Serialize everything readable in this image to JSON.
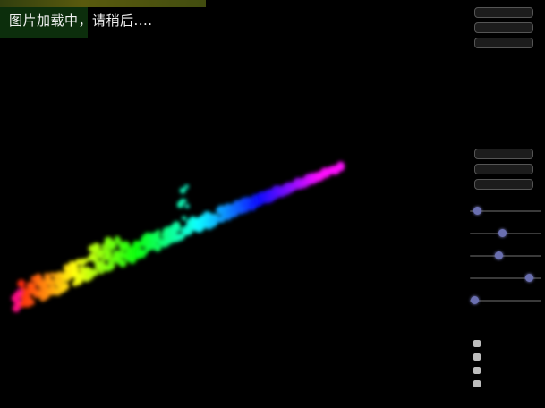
{
  "loading_text": "图片加载中，请稍后....",
  "top_buttons": [
    "",
    "",
    ""
  ],
  "mid_buttons": [
    "",
    "",
    ""
  ],
  "sliders": [
    {
      "label": "",
      "value": 0.05
    },
    {
      "label": "",
      "value": 0.45
    },
    {
      "label": "",
      "value": 0.4
    },
    {
      "label": "",
      "value": 0.88
    },
    {
      "label": "",
      "value": 0.02
    }
  ],
  "checkboxes": [
    "",
    "",
    "",
    ""
  ],
  "colors": {
    "background": "#000000",
    "slider_knob": "#6a6fb0"
  }
}
